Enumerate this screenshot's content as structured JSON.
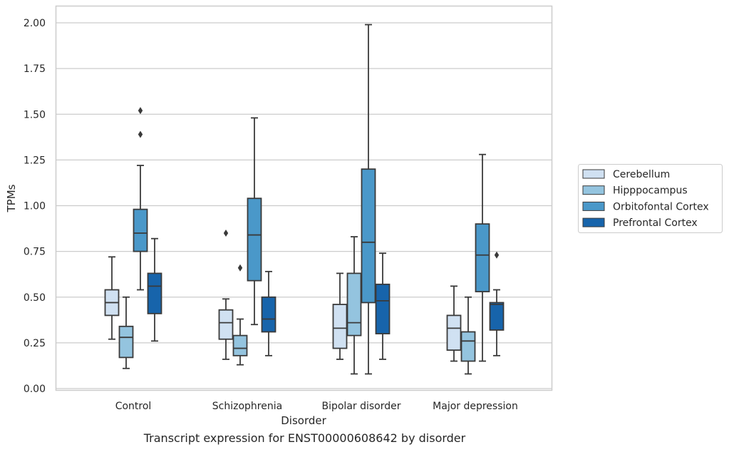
{
  "caption": "Transcript expression for ENST00000608642 by disorder",
  "chart_data": {
    "type": "box",
    "xlabel": "Disorder",
    "ylabel": "TPMs",
    "ylim": [
      0,
      2.08
    ],
    "yticks": [
      0.0,
      0.25,
      0.5,
      0.75,
      1.0,
      1.25,
      1.5,
      1.75,
      2.0
    ],
    "ytick_labels": [
      "0.00",
      "0.25",
      "0.50",
      "0.75",
      "1.00",
      "1.25",
      "1.50",
      "1.75",
      "2.00"
    ],
    "grid": "horizontal",
    "legend_position": "right",
    "categories": [
      "Control",
      "Schizophrenia",
      "Bipolar disorder",
      "Major depression"
    ],
    "series": [
      {
        "name": "Cerebellum",
        "color": "#d0e1f2",
        "boxes": [
          {
            "whislo": 0.27,
            "q1": 0.4,
            "med": 0.47,
            "q3": 0.54,
            "whishi": 0.72,
            "fliers": []
          },
          {
            "whislo": 0.16,
            "q1": 0.27,
            "med": 0.36,
            "q3": 0.43,
            "whishi": 0.49,
            "fliers": [
              0.85
            ]
          },
          {
            "whislo": 0.16,
            "q1": 0.22,
            "med": 0.33,
            "q3": 0.46,
            "whishi": 0.63,
            "fliers": []
          },
          {
            "whislo": 0.15,
            "q1": 0.21,
            "med": 0.33,
            "q3": 0.4,
            "whishi": 0.56,
            "fliers": []
          }
        ]
      },
      {
        "name": "Hipppocampus",
        "color": "#94c4df",
        "boxes": [
          {
            "whislo": 0.11,
            "q1": 0.17,
            "med": 0.28,
            "q3": 0.34,
            "whishi": 0.5,
            "fliers": []
          },
          {
            "whislo": 0.13,
            "q1": 0.18,
            "med": 0.22,
            "q3": 0.29,
            "whishi": 0.38,
            "fliers": [
              0.66
            ]
          },
          {
            "whislo": 0.08,
            "q1": 0.29,
            "med": 0.36,
            "q3": 0.63,
            "whishi": 0.83,
            "fliers": []
          },
          {
            "whislo": 0.08,
            "q1": 0.15,
            "med": 0.26,
            "q3": 0.31,
            "whishi": 0.5,
            "fliers": []
          }
        ]
      },
      {
        "name": "Orbitofontal Cortex",
        "color": "#4a98c9",
        "boxes": [
          {
            "whislo": 0.54,
            "q1": 0.75,
            "med": 0.85,
            "q3": 0.98,
            "whishi": 1.22,
            "fliers": [
              1.39,
              1.52
            ]
          },
          {
            "whislo": 0.35,
            "q1": 0.59,
            "med": 0.84,
            "q3": 1.04,
            "whishi": 1.48,
            "fliers": []
          },
          {
            "whislo": 0.08,
            "q1": 0.47,
            "med": 0.8,
            "q3": 1.2,
            "whishi": 1.99,
            "fliers": []
          },
          {
            "whislo": 0.15,
            "q1": 0.53,
            "med": 0.73,
            "q3": 0.9,
            "whishi": 1.28,
            "fliers": []
          }
        ]
      },
      {
        "name": "Prefrontal Cortex",
        "color": "#1764ab",
        "boxes": [
          {
            "whislo": 0.26,
            "q1": 0.41,
            "med": 0.56,
            "q3": 0.63,
            "whishi": 0.82,
            "fliers": []
          },
          {
            "whislo": 0.18,
            "q1": 0.31,
            "med": 0.38,
            "q3": 0.5,
            "whishi": 0.64,
            "fliers": []
          },
          {
            "whislo": 0.16,
            "q1": 0.3,
            "med": 0.48,
            "q3": 0.57,
            "whishi": 0.74,
            "fliers": []
          },
          {
            "whislo": 0.18,
            "q1": 0.32,
            "med": 0.46,
            "q3": 0.47,
            "whishi": 0.54,
            "fliers": [
              0.73
            ]
          }
        ]
      }
    ]
  }
}
